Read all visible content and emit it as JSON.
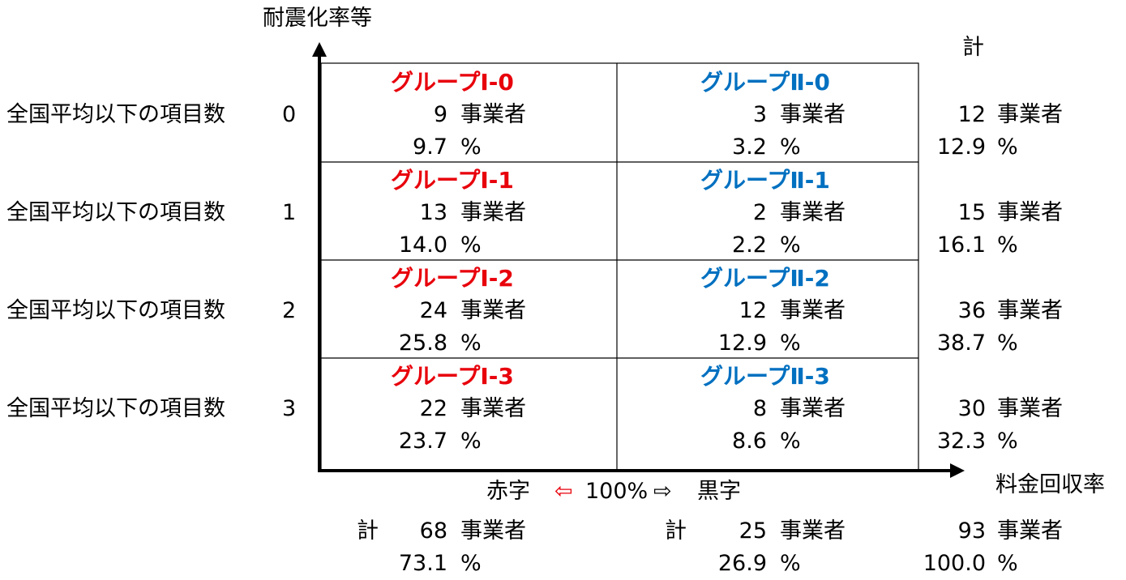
{
  "y_axis_label": "耐震化率等",
  "x_axis_label": "料金回収率",
  "total_col_header": "計",
  "unit_count": "事業者",
  "unit_pct": "%",
  "row_label": "全国平均以下の項目数",
  "rows": [
    {
      "level": "0",
      "left": {
        "group": "グループⅠ-0",
        "count": "9",
        "pct": "9.7"
      },
      "right": {
        "group": "グループⅡ-0",
        "count": "3",
        "pct": "3.2"
      },
      "total": {
        "count": "12",
        "pct": "12.9"
      }
    },
    {
      "level": "1",
      "left": {
        "group": "グループⅠ-1",
        "count": "13",
        "pct": "14.0"
      },
      "right": {
        "group": "グループⅡ-1",
        "count": "2",
        "pct": "2.2"
      },
      "total": {
        "count": "15",
        "pct": "16.1"
      }
    },
    {
      "level": "2",
      "left": {
        "group": "グループⅠ-2",
        "count": "24",
        "pct": "25.8"
      },
      "right": {
        "group": "グループⅡ-2",
        "count": "12",
        "pct": "12.9"
      },
      "total": {
        "count": "36",
        "pct": "38.7"
      }
    },
    {
      "level": "3",
      "left": {
        "group": "グループⅠ-3",
        "count": "22",
        "pct": "23.7"
      },
      "right": {
        "group": "グループⅡ-3",
        "count": "8",
        "pct": "8.6"
      },
      "total": {
        "count": "30",
        "pct": "32.3"
      }
    }
  ],
  "x_scale": {
    "left": "赤字",
    "left_arrow": "⇦",
    "center": "100%",
    "right_arrow": "⇨",
    "right": "黒字"
  },
  "totals": {
    "label": "計",
    "left": {
      "count": "68",
      "pct": "73.1"
    },
    "right": {
      "count": "25",
      "pct": "26.9"
    },
    "grand": {
      "count": "93",
      "pct": "100.0"
    }
  },
  "colors": {
    "group1": "#e8000b",
    "group2": "#0070c0"
  }
}
